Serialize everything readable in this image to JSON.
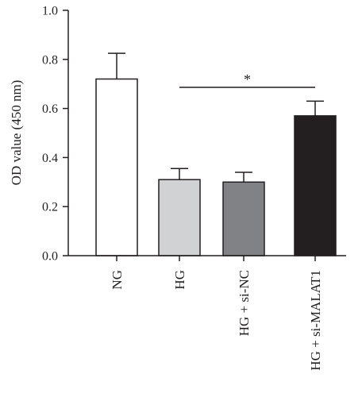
{
  "chart_data": {
    "type": "bar",
    "title": "",
    "xlabel": "",
    "ylabel": "OD value (450 nm)",
    "ylim": [
      0.0,
      1.0
    ],
    "yticks": [
      "0.0",
      "0.2",
      "0.4",
      "0.6",
      "0.8",
      "1.0"
    ],
    "categories": [
      "NG",
      "HG",
      "HG + si-NC",
      "HG + si-MALAT1"
    ],
    "values": [
      0.72,
      0.31,
      0.3,
      0.57
    ],
    "errors": [
      0.105,
      0.045,
      0.04,
      0.06
    ],
    "bar_colors": [
      "#ffffff",
      "#d1d2d4",
      "#808285",
      "#231f20"
    ],
    "grid": false,
    "significance": {
      "from": "HG",
      "to": "HG + si-MALAT1",
      "label": "*"
    }
  }
}
